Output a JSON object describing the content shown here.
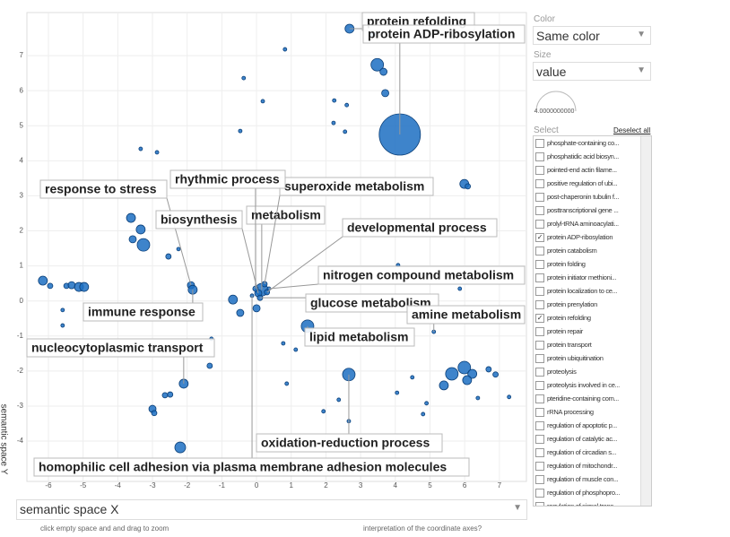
{
  "chart_data": {
    "type": "scatter",
    "x_label": "semantic space X",
    "y_label": "semantic space Y",
    "xlim": [
      -6.62,
      7.78
    ],
    "ylim": [
      -5.15,
      8.23
    ],
    "xticks": [
      -6,
      -5,
      -4,
      -3,
      -2,
      -1,
      0,
      1,
      2,
      3,
      4,
      5,
      6,
      7
    ],
    "yticks": [
      -4,
      -3,
      -2,
      -1,
      0,
      1,
      2,
      3,
      4,
      5,
      6,
      7
    ],
    "grid": true,
    "series": [
      {
        "color": "#1c6fc2",
        "x": [
          2.68,
          4.13,
          3.48,
          3.66,
          3.71,
          3.35,
          0.82,
          -0.37,
          0.18,
          -0.47,
          2.24,
          2.6,
          2.55,
          2.22,
          -3.34,
          -2.87,
          5.99,
          6.09,
          -3.62,
          -3.34,
          -3.57,
          -3.26,
          -2.54,
          -2.25,
          -1.89,
          -1.84,
          -6.16,
          -5.95,
          -5.48,
          -5.33,
          -5.12,
          -4.97,
          -5.59,
          -5.59,
          0.15,
          0.05,
          0.23,
          -0.03,
          0.3,
          0.36,
          0.1,
          0.0,
          -0.13,
          -0.68,
          -0.47,
          1.47,
          1.13,
          0.77,
          5.11,
          4.08,
          5.86,
          2.66,
          2.66,
          -2.1,
          -2.49,
          -2.64,
          -3.0,
          -2.95,
          -2.2,
          -1.35,
          -1.3,
          5.99,
          5.63,
          6.22,
          6.07,
          5.4,
          6.69,
          6.89,
          7.28,
          4.49,
          4.9,
          4.8,
          6.38,
          4.05,
          0.87,
          1.93,
          2.37
        ],
        "y": [
          7.77,
          4.75,
          6.74,
          6.54,
          5.93,
          7.61,
          7.18,
          6.36,
          5.7,
          4.85,
          5.72,
          5.59,
          4.83,
          5.08,
          4.34,
          4.24,
          3.34,
          3.27,
          2.37,
          2.04,
          1.76,
          1.6,
          1.27,
          1.48,
          0.45,
          0.32,
          0.58,
          0.43,
          0.43,
          0.45,
          0.4,
          0.4,
          -0.26,
          -0.7,
          0.32,
          0.22,
          0.48,
          0.35,
          0.25,
          0.35,
          0.09,
          -0.21,
          0.15,
          0.04,
          -0.34,
          -0.72,
          -1.39,
          -1.21,
          -0.88,
          1.02,
          0.35,
          -2.1,
          -3.43,
          -2.36,
          -2.67,
          -2.69,
          -3.08,
          -3.2,
          -4.18,
          -1.85,
          -1.08,
          -1.9,
          -2.08,
          -2.08,
          -2.26,
          -2.41,
          -1.95,
          -2.1,
          -2.74,
          -2.18,
          -2.92,
          -3.23,
          -2.77,
          -2.62,
          -2.36,
          -3.15,
          -2.82
        ],
        "sizes": [
          25,
          529,
          49,
          16,
          16,
          9,
          4,
          4,
          4,
          4,
          4,
          4,
          4,
          4,
          4,
          4,
          25,
          9,
          25,
          25,
          16,
          49,
          9,
          4,
          16,
          25,
          25,
          9,
          9,
          16,
          25,
          25,
          4,
          4,
          49,
          16,
          9,
          9,
          9,
          4,
          9,
          16,
          4,
          25,
          16,
          49,
          4,
          4,
          4,
          4,
          4,
          49,
          4,
          25,
          9,
          9,
          16,
          9,
          36,
          9,
          4,
          49,
          49,
          25,
          25,
          25,
          9,
          9,
          4,
          4,
          4,
          4,
          4,
          4,
          4,
          4,
          4
        ],
        "labels": [
          "protein refolding",
          "protein ADP-ribosylation",
          null,
          null,
          null,
          null,
          null,
          null,
          null,
          null,
          null,
          null,
          null,
          null,
          null,
          null,
          null,
          null,
          null,
          null,
          null,
          null,
          null,
          null,
          "response to stress",
          "immune response",
          null,
          null,
          null,
          null,
          null,
          null,
          null,
          null,
          "metabolism",
          "biosynthesis",
          "superoxide metabolism",
          "rhythmic process",
          "developmental process",
          "nitrogen compound metabolism",
          "glucose metabolism",
          null,
          "homophilic cell adhesion via plasma membrane adhesion molecules",
          null,
          null,
          "lipid metabolism",
          null,
          null,
          "amine metabolism",
          null,
          null,
          "oxidation-reduction process",
          null,
          "nucleocytoplasmic transport",
          null,
          null,
          null,
          null,
          null,
          null,
          null,
          null,
          null,
          null,
          null,
          null,
          null,
          null,
          null,
          null,
          null,
          null,
          null,
          null,
          null,
          null,
          null
        ]
      }
    ]
  },
  "panel": {
    "color_label": "Color",
    "color_value": "Same color",
    "size_label": "Size",
    "size_value": "value",
    "gauge_label": "4.0000000000",
    "select_label": "Select",
    "deselect": "Deselect all",
    "items": [
      {
        "text": "phosphate-containing co...",
        "checked": false
      },
      {
        "text": "phosphatidic acid biosyn...",
        "checked": false
      },
      {
        "text": "pointed-end actin filame...",
        "checked": false
      },
      {
        "text": "positive regulation of ubi...",
        "checked": false
      },
      {
        "text": "post-chaperonin tubulin f...",
        "checked": false
      },
      {
        "text": "posttranscriptional gene ...",
        "checked": false
      },
      {
        "text": "prolyl-tRNA aminoacylati...",
        "checked": false
      },
      {
        "text": "protein ADP-ribosylation",
        "checked": true
      },
      {
        "text": "protein catabolism",
        "checked": false
      },
      {
        "text": "protein folding",
        "checked": false
      },
      {
        "text": "protein initiator methioni...",
        "checked": false
      },
      {
        "text": "protein localization to ce...",
        "checked": false
      },
      {
        "text": "protein prenylation",
        "checked": false
      },
      {
        "text": "protein refolding",
        "checked": true
      },
      {
        "text": "protein repair",
        "checked": false
      },
      {
        "text": "protein transport",
        "checked": false
      },
      {
        "text": "protein ubiquitination",
        "checked": false
      },
      {
        "text": "proteolysis",
        "checked": false
      },
      {
        "text": "proteolysis involved in ce...",
        "checked": false
      },
      {
        "text": "pteridine-containing com...",
        "checked": false
      },
      {
        "text": "rRNA processing",
        "checked": false
      },
      {
        "text": "regulation of apoptotic p...",
        "checked": false
      },
      {
        "text": "regulation of catalytic ac...",
        "checked": false
      },
      {
        "text": "regulation of circadian s...",
        "checked": false
      },
      {
        "text": "regulation of mitochondr...",
        "checked": false
      },
      {
        "text": "regulation of muscle con...",
        "checked": false
      },
      {
        "text": "regulation of phosphopro...",
        "checked": false
      },
      {
        "text": "regulation of signal trans...",
        "checked": false
      }
    ]
  },
  "footer": {
    "hint_zoom": "click empty space and and drag to zoom",
    "hint_axes": "interpretation of the coordinate axes?"
  }
}
